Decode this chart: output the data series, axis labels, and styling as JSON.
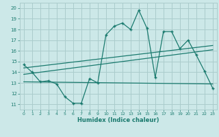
{
  "title": "",
  "xlabel": "Humidex (Indice chaleur)",
  "ylabel": "",
  "bg_color": "#cce8e8",
  "line_color": "#1a7a6e",
  "grid_color": "#aacccc",
  "xlim": [
    -0.5,
    23.5
  ],
  "ylim": [
    10.5,
    20.5
  ],
  "yticks": [
    11,
    12,
    13,
    14,
    15,
    16,
    17,
    18,
    19,
    20
  ],
  "xticks": [
    0,
    1,
    2,
    3,
    4,
    5,
    6,
    7,
    8,
    9,
    10,
    11,
    12,
    13,
    14,
    15,
    16,
    17,
    18,
    19,
    20,
    21,
    22,
    23
  ],
  "series1_x": [
    0,
    1,
    2,
    3,
    4,
    5,
    6,
    7,
    8,
    9,
    10,
    11,
    12,
    13,
    14,
    15,
    16,
    17,
    18,
    19,
    20,
    21,
    22,
    23
  ],
  "series1_y": [
    14.7,
    14.0,
    13.1,
    13.2,
    12.9,
    11.7,
    11.1,
    11.1,
    13.4,
    13.0,
    17.5,
    18.3,
    18.6,
    18.0,
    19.8,
    18.1,
    13.5,
    17.8,
    17.8,
    16.2,
    17.0,
    15.6,
    14.1,
    12.5
  ],
  "series2_x": [
    0,
    23
  ],
  "series2_y": [
    14.4,
    16.5
  ],
  "series3_x": [
    0,
    23
  ],
  "series3_y": [
    13.8,
    16.1
  ],
  "series4_x": [
    0,
    23
  ],
  "series4_y": [
    13.1,
    12.9
  ]
}
